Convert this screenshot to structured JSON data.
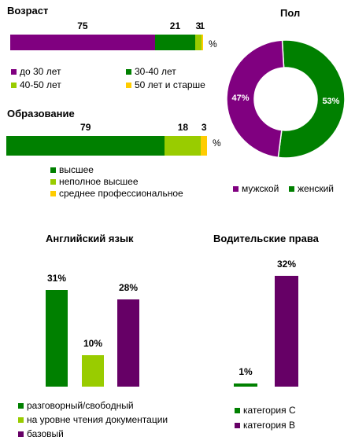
{
  "chart_data": [
    {
      "type": "bar",
      "orientation": "horizontal-stacked",
      "title": "Возраст",
      "unit": "%",
      "series": [
        {
          "name": "до 30 лет",
          "values": [
            75
          ],
          "color": "#800080"
        },
        {
          "name": "30-40  лет",
          "values": [
            21
          ],
          "color": "#008000"
        },
        {
          "name": "40-50  лет",
          "values": [
            3
          ],
          "color": "#99cc00"
        },
        {
          "name": "50 лет  и старше",
          "values": [
            1
          ],
          "color": "#ffcc00"
        }
      ]
    },
    {
      "type": "bar",
      "orientation": "horizontal-stacked",
      "title": "Образование",
      "unit": "%",
      "series": [
        {
          "name": "высшее",
          "values": [
            79
          ],
          "color": "#008000"
        },
        {
          "name": "неполное высшее",
          "values": [
            18
          ],
          "color": "#99cc00"
        },
        {
          "name": "среднее профессиональное",
          "values": [
            3
          ],
          "color": "#ffcc00"
        }
      ]
    },
    {
      "type": "pie",
      "subtype": "donut",
      "title": "Пол",
      "categories": [
        "мужской",
        "женский"
      ],
      "values": [
        47,
        53
      ],
      "labels": [
        "47%",
        "53%"
      ],
      "colors": [
        "#800080",
        "#008000"
      ]
    },
    {
      "type": "bar",
      "title": "Английский  язык",
      "categories": [
        "разговорный/свободный",
        "на уровне чтения документации",
        "базовый"
      ],
      "values": [
        31,
        10,
        28
      ],
      "labels": [
        "31%",
        "10%",
        "28%"
      ],
      "colors": [
        "#008000",
        "#99cc00",
        "#660066"
      ],
      "ylim": [
        0,
        32
      ]
    },
    {
      "type": "bar",
      "title": "Водительские  права",
      "categories": [
        "категория  С",
        "категория  В"
      ],
      "values": [
        1,
        32
      ],
      "labels": [
        "1%",
        "32%"
      ],
      "colors": [
        "#008000",
        "#660066"
      ],
      "ylim": [
        0,
        32
      ]
    }
  ]
}
